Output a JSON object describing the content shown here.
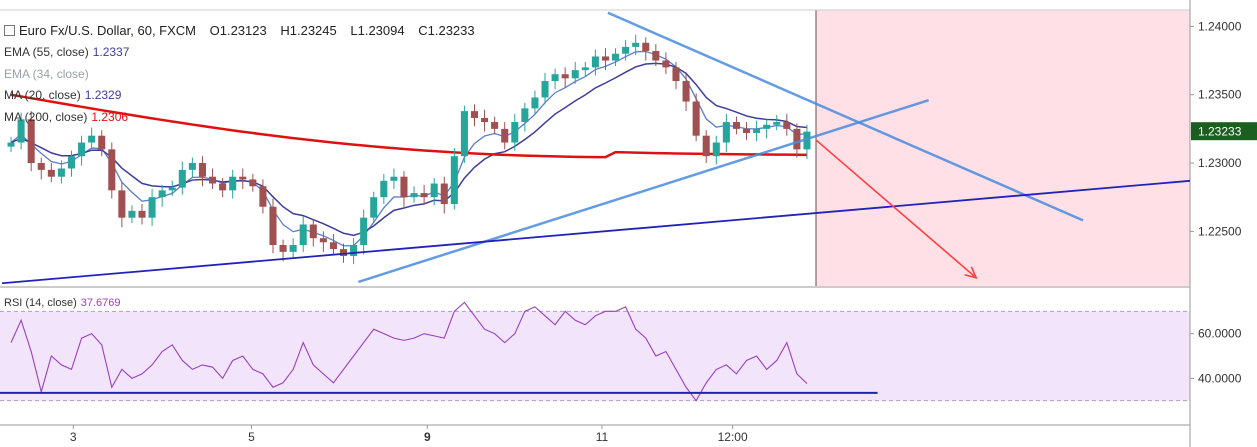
{
  "header": {
    "symbol": "Euro Fx/U.S. Dollar, 60, FXCM",
    "open": "O1.23123",
    "high": "H1.23245",
    "low": "L1.23094",
    "close": "C1.23233"
  },
  "indicators": [
    {
      "label": "EMA (55, close)",
      "value": "1.2337",
      "color": "#3d3d9b",
      "faded": false
    },
    {
      "label": "EMA (34, close)",
      "value": "",
      "color": "#9aa0a6",
      "faded": true
    },
    {
      "label": "MA (20, close)",
      "value": "1.2329",
      "color": "#3d3d9b",
      "faded": false
    },
    {
      "label": "MA (200, close)",
      "value": "1.2306",
      "color": "#e01010",
      "faded": false
    }
  ],
  "rsi_legend": {
    "label": "RSI (14, close)",
    "value": "37.6769"
  },
  "price_axis": {
    "ticks": [
      "1.24000",
      "1.23500",
      "1.23000",
      "1.22500"
    ],
    "current_price": "1.23233",
    "current_price_color": "#1b5e20"
  },
  "rsi_axis": {
    "ticks": [
      "60.0000",
      "40.0000"
    ]
  },
  "time_axis": {
    "ticks": [
      "3",
      "5",
      "9",
      "11",
      "12:00"
    ]
  },
  "colors": {
    "up": "#26a69a",
    "down": "#a05050",
    "ema55": "#3d3d9b",
    "ema34": "#5a7ecb",
    "ma200": "#e01010",
    "trend": "#4a8be0",
    "support": "#2222bb",
    "rsi": "#9b3fbf",
    "shade": "#ffe0e6",
    "arrow": "#ff4040"
  },
  "chart_data": [
    {
      "type": "candlestick",
      "title": "Euro Fx/U.S. Dollar, 60, FXCM",
      "ylim": [
        1.221,
        1.2412
      ],
      "x_ticks": [
        "3",
        "5",
        "9",
        "11",
        "12:00"
      ],
      "close_path": [
        1.2315,
        1.2332,
        1.23,
        1.2295,
        1.229,
        1.2296,
        1.2305,
        1.2315,
        1.232,
        1.231,
        1.228,
        1.226,
        1.2265,
        1.226,
        1.2275,
        1.228,
        1.2282,
        1.2295,
        1.23,
        1.229,
        1.2285,
        1.228,
        1.229,
        1.2288,
        1.2283,
        1.2268,
        1.224,
        1.2235,
        1.224,
        1.2255,
        1.2245,
        1.2242,
        1.2237,
        1.2232,
        1.224,
        1.226,
        1.2275,
        1.2287,
        1.229,
        1.2275,
        1.2278,
        1.2275,
        1.2285,
        1.227,
        1.2305,
        1.2338,
        1.2333,
        1.233,
        1.2325,
        1.2315,
        1.233,
        1.234,
        1.2348,
        1.236,
        1.2365,
        1.2362,
        1.2368,
        1.237,
        1.2378,
        1.2375,
        1.238,
        1.2385,
        1.2388,
        1.2382,
        1.2375,
        1.237,
        1.236,
        1.2345,
        1.232,
        1.2305,
        1.2315,
        1.233,
        1.2325,
        1.2322,
        1.2325,
        1.2328,
        1.233,
        1.2325,
        1.231,
        1.2323
      ],
      "ma200": {
        "start": 1.235,
        "end": 1.2306
      },
      "lines": [
        {
          "name": "descending-trendline",
          "from": {
            "t": 0.51,
            "p": 1.241
          },
          "to": {
            "t": 0.91,
            "p": 1.2258
          }
        },
        {
          "name": "ascending-trendline",
          "from": {
            "t": 0.3,
            "p": 1.2213
          },
          "to": {
            "t": 0.78,
            "p": 1.2346
          }
        },
        {
          "name": "long-support-line",
          "from": {
            "t": 0.0,
            "p": 1.2212
          },
          "to": {
            "t": 1.0,
            "p": 1.2287
          }
        }
      ],
      "forecast_arrow": {
        "from": {
          "t": 0.685,
          "p": 1.2317
        },
        "to": {
          "t": 0.82,
          "p": 1.2216
        }
      },
      "current_price": 1.23233
    },
    {
      "type": "line",
      "title": "RSI (14, close)",
      "ylim": [
        20,
        80
      ],
      "band": [
        30,
        70
      ],
      "support_level": 33.5,
      "values": [
        56,
        66,
        52,
        34,
        50,
        46,
        44,
        58,
        60,
        55,
        36,
        44,
        40,
        42,
        46,
        52,
        55,
        48,
        44,
        46,
        45,
        40,
        48,
        50,
        44,
        42,
        36,
        38,
        44,
        56,
        46,
        42,
        38,
        44,
        50,
        56,
        62,
        60,
        58,
        57,
        58,
        60,
        59,
        58,
        70,
        74,
        68,
        62,
        60,
        56,
        60,
        70,
        72,
        68,
        64,
        70,
        66,
        64,
        68,
        70,
        70,
        72,
        62,
        58,
        50,
        52,
        44,
        36,
        30,
        38,
        44,
        46,
        42,
        48,
        50,
        44,
        48,
        56,
        42,
        37.68
      ]
    }
  ]
}
